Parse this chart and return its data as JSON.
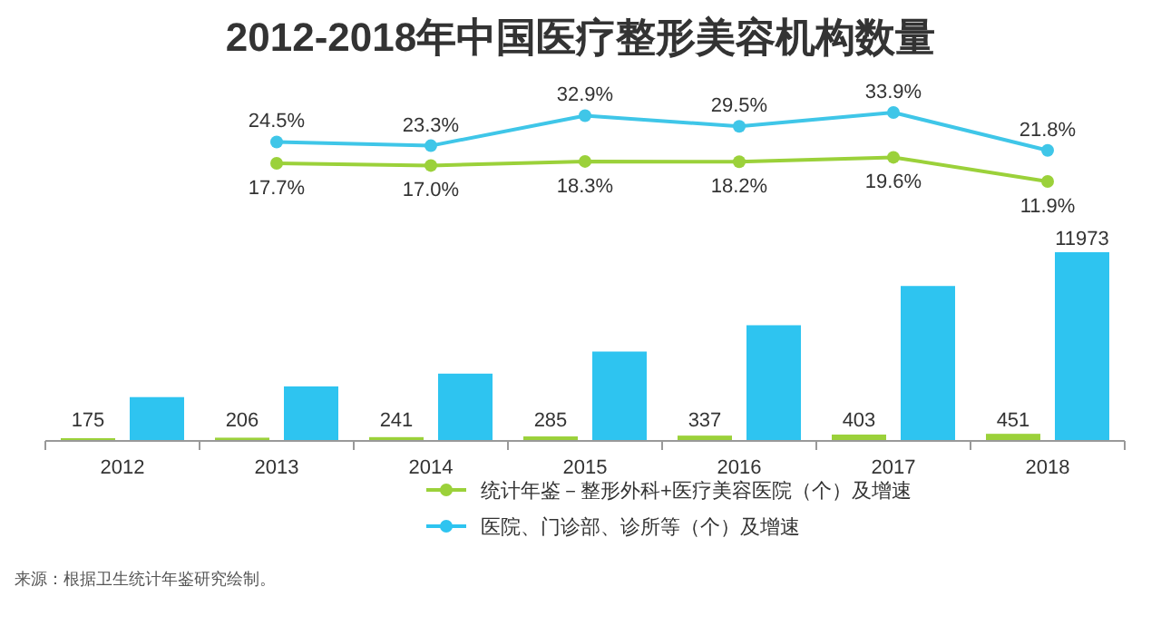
{
  "chart_data": [
    {
      "type": "line",
      "title": "2012-2018年中国医疗整形美容机构数量",
      "categories": [
        "2013",
        "2014",
        "2015",
        "2016",
        "2017",
        "2018"
      ],
      "tick_labels": false,
      "marker": "circle",
      "series": [
        {
          "color": "#9bd13a",
          "values": [
            17.7,
            17.0,
            18.3,
            18.2,
            19.6,
            11.9
          ],
          "value_labels": [
            "17.7%",
            "17.0%",
            "18.3%",
            "18.2%",
            "19.6%",
            "11.9%"
          ]
        },
        {
          "color": "#3fc6e8",
          "values": [
            24.5,
            23.3,
            32.9,
            29.5,
            33.9,
            21.8
          ],
          "value_labels": [
            "24.5%",
            "23.3%",
            "32.9%",
            "29.5%",
            "33.9%",
            "21.8%"
          ]
        }
      ]
    },
    {
      "type": "bar",
      "categories": [
        "2012",
        "2013",
        "2014",
        "2015",
        "2016",
        "2017",
        "2018"
      ],
      "legend": "bottom right",
      "marker": "circle",
      "series": [
        {
          "name": "统计年鉴－整形外科+医疗美容医院（个）及增速",
          "color": "#9bd13a",
          "values": [
            175,
            206,
            241,
            285,
            337,
            403,
            451
          ],
          "value_labels": [
            "175",
            "206",
            "241",
            "285",
            "337",
            "403",
            "451"
          ]
        },
        {
          "name": "医院、门诊部、诊所等（个）及增速",
          "color": "#2ec4f0",
          "values": [
            2780,
            3460,
            4270,
            5670,
            7340,
            9830,
            11973
          ],
          "value_labels": [
            null,
            null,
            null,
            null,
            null,
            null,
            "11973"
          ]
        }
      ],
      "annotations": [
        "来源：根据卫生统计年鉴研究绘制。"
      ]
    }
  ]
}
